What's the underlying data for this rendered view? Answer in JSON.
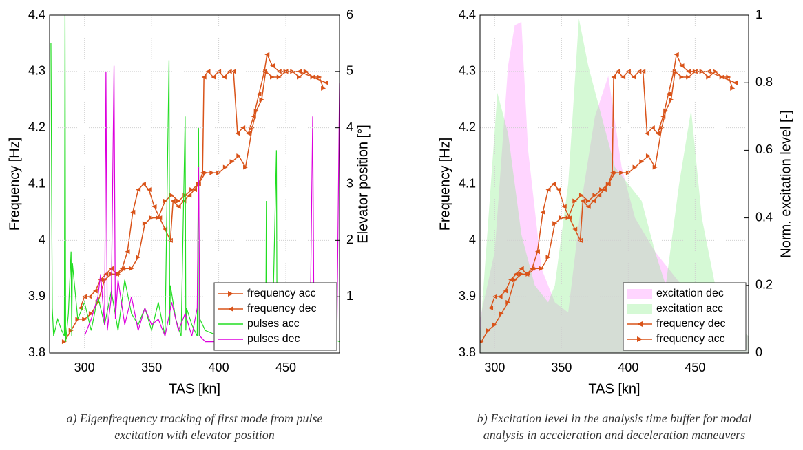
{
  "chart_data": [
    {
      "type": "line",
      "x_label": "TAS [kn]",
      "y_label": "Frequency [Hz]",
      "y2_label": "Elevator position [°]",
      "caption": [
        "a) Eigenfrequency tracking of first mode from pulse",
        "excitation with elevator position"
      ],
      "xlim": [
        274,
        490
      ],
      "ylim": [
        3.8,
        4.4
      ],
      "y2lim": [
        0,
        6
      ],
      "xticks": [
        300,
        350,
        400,
        450
      ],
      "yticks": [
        3.8,
        3.9,
        4,
        4.1,
        4.2,
        4.3,
        4.4
      ],
      "y2ticks": [
        1,
        2,
        3,
        4,
        5,
        6
      ],
      "grid": true,
      "legend": "lower right",
      "series": [
        {
          "name": "frequency acc",
          "color": "#d95319",
          "marker": ">",
          "axis": "y",
          "x": [
            285,
            290,
            295,
            300,
            305,
            310,
            315,
            320,
            325,
            330,
            335,
            340,
            345,
            350,
            355,
            360,
            365,
            370,
            375,
            380,
            385,
            390,
            395,
            400,
            405,
            410,
            415,
            420,
            425,
            428,
            432,
            435,
            440,
            445,
            450,
            455,
            460,
            465,
            470,
            475,
            478
          ],
          "values": [
            3.82,
            3.84,
            3.86,
            3.86,
            3.87,
            3.89,
            3.93,
            3.94,
            3.94,
            3.95,
            3.95,
            3.97,
            4.03,
            4.04,
            4.04,
            4.07,
            4.08,
            4.07,
            4.08,
            4.09,
            4.1,
            4.12,
            4.12,
            4.12,
            4.13,
            4.14,
            4.15,
            4.13,
            4.2,
            4.23,
            4.25,
            4.3,
            4.29,
            4.29,
            4.3,
            4.3,
            4.29,
            4.3,
            4.29,
            4.29,
            4.27
          ]
        },
        {
          "name": "frequency dec",
          "color": "#d95319",
          "marker": "<",
          "axis": "y",
          "x": [
            480,
            470,
            460,
            450,
            445,
            440,
            436,
            434,
            430,
            426,
            422,
            418,
            414,
            411,
            408,
            404,
            400,
            396,
            392,
            389,
            388,
            385,
            382,
            378,
            374,
            370,
            366,
            364,
            360,
            356,
            352,
            348,
            344,
            340,
            336,
            332,
            328,
            324,
            320,
            316,
            312,
            308,
            304,
            300,
            297
          ],
          "values": [
            4.28,
            4.29,
            4.3,
            4.3,
            4.3,
            4.31,
            4.33,
            4.3,
            4.26,
            4.22,
            4.19,
            4.2,
            4.19,
            4.3,
            4.3,
            4.29,
            4.3,
            4.29,
            4.3,
            4.29,
            4.12,
            4.1,
            4.09,
            4.08,
            4.07,
            4.06,
            4.07,
            4.0,
            4.02,
            4.04,
            4.06,
            4.09,
            4.1,
            4.09,
            4.05,
            3.98,
            3.95,
            3.94,
            3.95,
            3.94,
            3.93,
            3.91,
            3.9,
            3.9,
            3.88
          ]
        },
        {
          "name": "pulses acc",
          "color": "#22dd22",
          "axis": "y2",
          "x": [
            275,
            276,
            277,
            280,
            283,
            285,
            285.5,
            286,
            288,
            290,
            290.5,
            291,
            295,
            300,
            305,
            310,
            315,
            320,
            325,
            330,
            335,
            340,
            345,
            350,
            355,
            360,
            363,
            363.5,
            364,
            368,
            372,
            375,
            375.5,
            376,
            380,
            384,
            385,
            385.5,
            386,
            390,
            400,
            410,
            420,
            430,
            435,
            435.5,
            436,
            440,
            443,
            443.5,
            444,
            450,
            460,
            470,
            480,
            490
          ],
          "values": [
            5.5,
            0.8,
            0.3,
            0.6,
            0.4,
            0.3,
            6.0,
            0.2,
            0.7,
            1.8,
            0.3,
            1.6,
            0.6,
            0.9,
            0.4,
            1.0,
            0.5,
            1.1,
            0.4,
            1.3,
            0.7,
            0.5,
            0.8,
            0.4,
            0.9,
            0.3,
            5.2,
            0.5,
            1.2,
            0.6,
            0.3,
            4.2,
            0.4,
            0.8,
            0.5,
            0.3,
            4.0,
            0.3,
            0.6,
            0.4,
            0.3,
            0.5,
            0.2,
            0.4,
            0.3,
            2.7,
            0.2,
            0.3,
            3.6,
            0.2,
            0.3,
            0.2,
            0.3,
            0.2,
            0.3,
            0.2
          ]
        },
        {
          "name": "pulses dec",
          "color": "#dd00dd",
          "axis": "y2",
          "x": [
            300,
            305,
            310,
            312,
            315,
            316,
            317,
            320,
            322,
            323,
            325,
            330,
            335,
            340,
            345,
            350,
            355,
            360,
            365,
            370,
            375,
            380,
            384,
            385,
            386,
            390,
            400,
            410,
            420,
            430,
            440,
            450,
            460,
            468,
            470,
            471,
            475,
            480,
            485,
            488,
            490
          ],
          "values": [
            0.3,
            0.6,
            1.0,
            1.4,
            0.5,
            5.0,
            0.4,
            1.0,
            5.1,
            0.6,
            1.3,
            0.5,
            1.0,
            0.4,
            0.8,
            0.5,
            0.6,
            0.3,
            0.9,
            0.4,
            0.7,
            0.3,
            0.8,
            3.3,
            0.3,
            0.2,
            0.2,
            0.3,
            0.2,
            0.2,
            0.3,
            0.2,
            0.2,
            0.2,
            4.2,
            0.3,
            0.6,
            0.2,
            0.8,
            0.2,
            4.8
          ]
        }
      ]
    },
    {
      "type": "line",
      "x_label": "TAS [kn]",
      "y_label": "Frequency [Hz]",
      "y2_label": "Norm. excitation level [-]",
      "caption": [
        "b) Excitation level in the analysis time buffer for modal",
        "analysis in acceleration and deceleration maneuvers"
      ],
      "xlim": [
        289,
        490
      ],
      "ylim": [
        3.8,
        4.4
      ],
      "y2lim": [
        0,
        1
      ],
      "xticks": [
        300,
        350,
        400,
        450
      ],
      "yticks": [
        3.8,
        3.9,
        4,
        4.1,
        4.2,
        4.3,
        4.4
      ],
      "y2ticks": [
        0,
        0.2,
        0.4,
        0.6,
        0.8,
        1
      ],
      "grid": true,
      "legend": "lower right",
      "series": [
        {
          "name": "excitation dec",
          "color": "#ff88ff",
          "style": "area",
          "axis": "y2",
          "x": [
            289,
            300,
            310,
            315,
            320,
            325,
            335,
            345,
            355,
            365,
            375,
            385,
            395,
            405,
            420,
            440,
            460,
            470,
            490
          ],
          "values": [
            0.1,
            0.3,
            0.85,
            0.97,
            0.98,
            0.6,
            0.25,
            0.15,
            0.12,
            0.45,
            0.7,
            0.82,
            0.55,
            0.4,
            0.3,
            0.2,
            0.15,
            0.1,
            0.05
          ]
        },
        {
          "name": "excitation acc",
          "color": "#88ee88",
          "style": "area",
          "axis": "y2",
          "x": [
            289,
            302,
            310,
            320,
            330,
            340,
            345,
            355,
            363,
            370,
            380,
            390,
            400,
            410,
            420,
            428,
            438,
            447,
            455,
            465,
            475,
            490
          ],
          "values": [
            0.05,
            0.77,
            0.65,
            0.35,
            0.2,
            0.15,
            0.2,
            0.5,
            0.99,
            0.85,
            0.7,
            0.55,
            0.5,
            0.45,
            0.3,
            0.2,
            0.5,
            0.72,
            0.4,
            0.2,
            0.1,
            0.05
          ]
        },
        {
          "name": "frequency dec",
          "color": "#d95319",
          "marker": "<",
          "axis": "y",
          "x": [
            480,
            470,
            460,
            450,
            445,
            440,
            436,
            434,
            430,
            426,
            422,
            418,
            414,
            411,
            408,
            404,
            400,
            396,
            392,
            389,
            388,
            385,
            382,
            378,
            374,
            370,
            366,
            364,
            360,
            356,
            352,
            348,
            344,
            340,
            336,
            332,
            328,
            324,
            320,
            316,
            312,
            308,
            304,
            300,
            297
          ],
          "values": [
            4.28,
            4.29,
            4.3,
            4.3,
            4.3,
            4.31,
            4.33,
            4.3,
            4.26,
            4.22,
            4.19,
            4.2,
            4.19,
            4.3,
            4.3,
            4.29,
            4.3,
            4.29,
            4.3,
            4.29,
            4.12,
            4.1,
            4.09,
            4.08,
            4.07,
            4.06,
            4.07,
            4.0,
            4.02,
            4.04,
            4.06,
            4.09,
            4.1,
            4.09,
            4.05,
            3.98,
            3.95,
            3.94,
            3.95,
            3.94,
            3.93,
            3.91,
            3.9,
            3.9,
            3.88
          ]
        },
        {
          "name": "frequency acc",
          "color": "#d95319",
          "marker": ">",
          "axis": "y",
          "x": [
            290,
            295,
            300,
            305,
            310,
            315,
            320,
            325,
            330,
            335,
            340,
            345,
            350,
            355,
            360,
            365,
            370,
            375,
            380,
            385,
            390,
            395,
            400,
            405,
            410,
            415,
            420,
            425,
            428,
            432,
            435,
            440,
            445,
            450,
            455,
            460,
            465,
            470,
            475,
            478
          ],
          "values": [
            3.82,
            3.84,
            3.85,
            3.87,
            3.89,
            3.93,
            3.94,
            3.94,
            3.95,
            3.95,
            3.97,
            4.03,
            4.04,
            4.04,
            4.07,
            4.08,
            4.07,
            4.08,
            4.09,
            4.1,
            4.12,
            4.12,
            4.12,
            4.13,
            4.14,
            4.15,
            4.13,
            4.2,
            4.23,
            4.25,
            4.3,
            4.29,
            4.29,
            4.3,
            4.3,
            4.29,
            4.3,
            4.29,
            4.29,
            4.27
          ]
        }
      ]
    }
  ]
}
